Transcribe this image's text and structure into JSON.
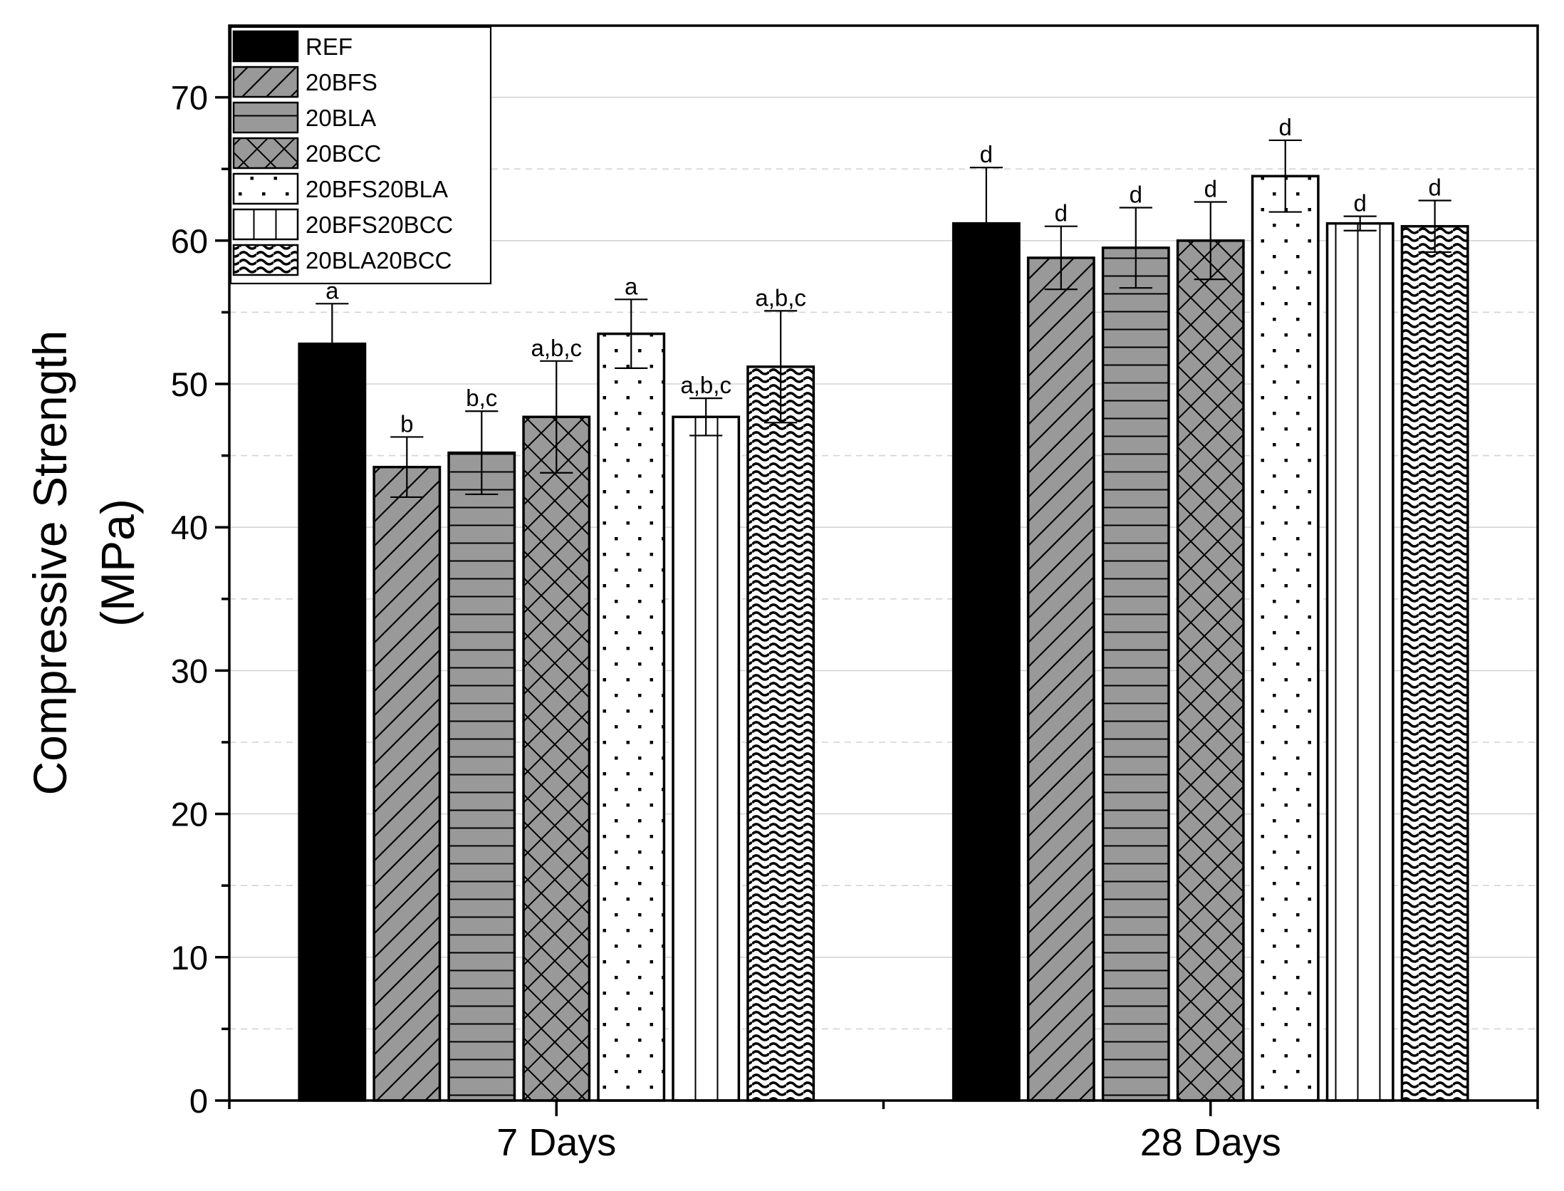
{
  "chart_data": {
    "type": "bar",
    "title": "",
    "xlabel": "",
    "ylabel": [
      "Compressive Strength",
      "(MPa)"
    ],
    "ylim": [
      0,
      75
    ],
    "yticks": [
      0,
      10,
      20,
      30,
      40,
      50,
      60,
      70
    ],
    "y_minor_ticks": [
      5,
      15,
      25,
      35,
      45,
      55,
      65
    ],
    "grid": true,
    "legend_position": "top-left",
    "categories": [
      "7 Days",
      "28 Days"
    ],
    "series": [
      {
        "name": "REF",
        "pattern": "solid",
        "values": [
          52.8,
          61.2
        ],
        "errors": [
          2.8,
          3.9
        ],
        "labels": [
          "a",
          "d"
        ]
      },
      {
        "name": "20BFS",
        "pattern": "diagonal",
        "values": [
          44.2,
          58.8
        ],
        "errors": [
          2.1,
          2.2
        ],
        "labels": [
          "b",
          "d"
        ]
      },
      {
        "name": "20BLA",
        "pattern": "horizontal",
        "values": [
          45.2,
          59.5
        ],
        "errors": [
          2.9,
          2.8
        ],
        "labels": [
          "b,c",
          "d"
        ]
      },
      {
        "name": "20BCC",
        "pattern": "crosshatch",
        "values": [
          47.7,
          60.0
        ],
        "errors": [
          3.9,
          2.7
        ],
        "labels": [
          "a,b,c",
          "d"
        ]
      },
      {
        "name": "20BFS20BLA",
        "pattern": "dots",
        "values": [
          53.5,
          64.5
        ],
        "errors": [
          2.4,
          2.5
        ],
        "labels": [
          "a",
          "d"
        ]
      },
      {
        "name": "20BFS20BCC",
        "pattern": "vertical",
        "values": [
          47.7,
          61.2
        ],
        "errors": [
          1.3,
          0.5
        ],
        "labels": [
          "a,b,c",
          "d"
        ]
      },
      {
        "name": "20BLA20BCC",
        "pattern": "waves",
        "values": [
          51.2,
          61.0
        ],
        "errors": [
          3.9,
          1.8
        ],
        "labels": [
          "a,b,c",
          "d"
        ]
      }
    ],
    "colors": {
      "solid": "#000000",
      "hatched_fill": "#999999",
      "open_fill": "#ffffff",
      "ink": "#000000",
      "grid": "#d4d4d4"
    }
  }
}
